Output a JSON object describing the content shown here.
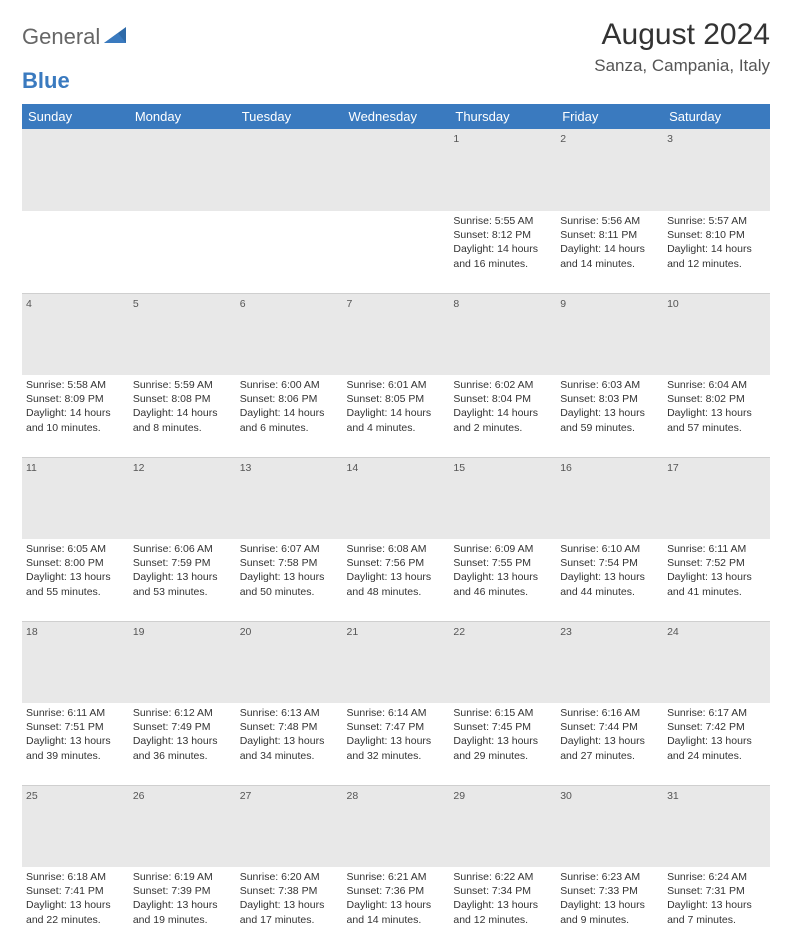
{
  "brand": {
    "text_gray": "General",
    "text_blue": "Blue"
  },
  "title": "August 2024",
  "location": "Sanza, Campania, Italy",
  "colors": {
    "header_bg": "#3a7abf",
    "header_text": "#ffffff",
    "daynum_bg": "#e8e8e8",
    "divider": "#cfcfcf",
    "text": "#333333",
    "text_muted": "#555555"
  },
  "day_headers": [
    "Sunday",
    "Monday",
    "Tuesday",
    "Wednesday",
    "Thursday",
    "Friday",
    "Saturday"
  ],
  "weeks": [
    {
      "nums": [
        "",
        "",
        "",
        "",
        "1",
        "2",
        "3"
      ],
      "details": [
        "",
        "",
        "",
        "",
        "Sunrise: 5:55 AM\nSunset: 8:12 PM\nDaylight: 14 hours and 16 minutes.",
        "Sunrise: 5:56 AM\nSunset: 8:11 PM\nDaylight: 14 hours and 14 minutes.",
        "Sunrise: 5:57 AM\nSunset: 8:10 PM\nDaylight: 14 hours and 12 minutes."
      ]
    },
    {
      "nums": [
        "4",
        "5",
        "6",
        "7",
        "8",
        "9",
        "10"
      ],
      "details": [
        "Sunrise: 5:58 AM\nSunset: 8:09 PM\nDaylight: 14 hours and 10 minutes.",
        "Sunrise: 5:59 AM\nSunset: 8:08 PM\nDaylight: 14 hours and 8 minutes.",
        "Sunrise: 6:00 AM\nSunset: 8:06 PM\nDaylight: 14 hours and 6 minutes.",
        "Sunrise: 6:01 AM\nSunset: 8:05 PM\nDaylight: 14 hours and 4 minutes.",
        "Sunrise: 6:02 AM\nSunset: 8:04 PM\nDaylight: 14 hours and 2 minutes.",
        "Sunrise: 6:03 AM\nSunset: 8:03 PM\nDaylight: 13 hours and 59 minutes.",
        "Sunrise: 6:04 AM\nSunset: 8:02 PM\nDaylight: 13 hours and 57 minutes."
      ]
    },
    {
      "nums": [
        "11",
        "12",
        "13",
        "14",
        "15",
        "16",
        "17"
      ],
      "details": [
        "Sunrise: 6:05 AM\nSunset: 8:00 PM\nDaylight: 13 hours and 55 minutes.",
        "Sunrise: 6:06 AM\nSunset: 7:59 PM\nDaylight: 13 hours and 53 minutes.",
        "Sunrise: 6:07 AM\nSunset: 7:58 PM\nDaylight: 13 hours and 50 minutes.",
        "Sunrise: 6:08 AM\nSunset: 7:56 PM\nDaylight: 13 hours and 48 minutes.",
        "Sunrise: 6:09 AM\nSunset: 7:55 PM\nDaylight: 13 hours and 46 minutes.",
        "Sunrise: 6:10 AM\nSunset: 7:54 PM\nDaylight: 13 hours and 44 minutes.",
        "Sunrise: 6:11 AM\nSunset: 7:52 PM\nDaylight: 13 hours and 41 minutes."
      ]
    },
    {
      "nums": [
        "18",
        "19",
        "20",
        "21",
        "22",
        "23",
        "24"
      ],
      "details": [
        "Sunrise: 6:11 AM\nSunset: 7:51 PM\nDaylight: 13 hours and 39 minutes.",
        "Sunrise: 6:12 AM\nSunset: 7:49 PM\nDaylight: 13 hours and 36 minutes.",
        "Sunrise: 6:13 AM\nSunset: 7:48 PM\nDaylight: 13 hours and 34 minutes.",
        "Sunrise: 6:14 AM\nSunset: 7:47 PM\nDaylight: 13 hours and 32 minutes.",
        "Sunrise: 6:15 AM\nSunset: 7:45 PM\nDaylight: 13 hours and 29 minutes.",
        "Sunrise: 6:16 AM\nSunset: 7:44 PM\nDaylight: 13 hours and 27 minutes.",
        "Sunrise: 6:17 AM\nSunset: 7:42 PM\nDaylight: 13 hours and 24 minutes."
      ]
    },
    {
      "nums": [
        "25",
        "26",
        "27",
        "28",
        "29",
        "30",
        "31"
      ],
      "details": [
        "Sunrise: 6:18 AM\nSunset: 7:41 PM\nDaylight: 13 hours and 22 minutes.",
        "Sunrise: 6:19 AM\nSunset: 7:39 PM\nDaylight: 13 hours and 19 minutes.",
        "Sunrise: 6:20 AM\nSunset: 7:38 PM\nDaylight: 13 hours and 17 minutes.",
        "Sunrise: 6:21 AM\nSunset: 7:36 PM\nDaylight: 13 hours and 14 minutes.",
        "Sunrise: 6:22 AM\nSunset: 7:34 PM\nDaylight: 13 hours and 12 minutes.",
        "Sunrise: 6:23 AM\nSunset: 7:33 PM\nDaylight: 13 hours and 9 minutes.",
        "Sunrise: 6:24 AM\nSunset: 7:31 PM\nDaylight: 13 hours and 7 minutes."
      ]
    }
  ]
}
